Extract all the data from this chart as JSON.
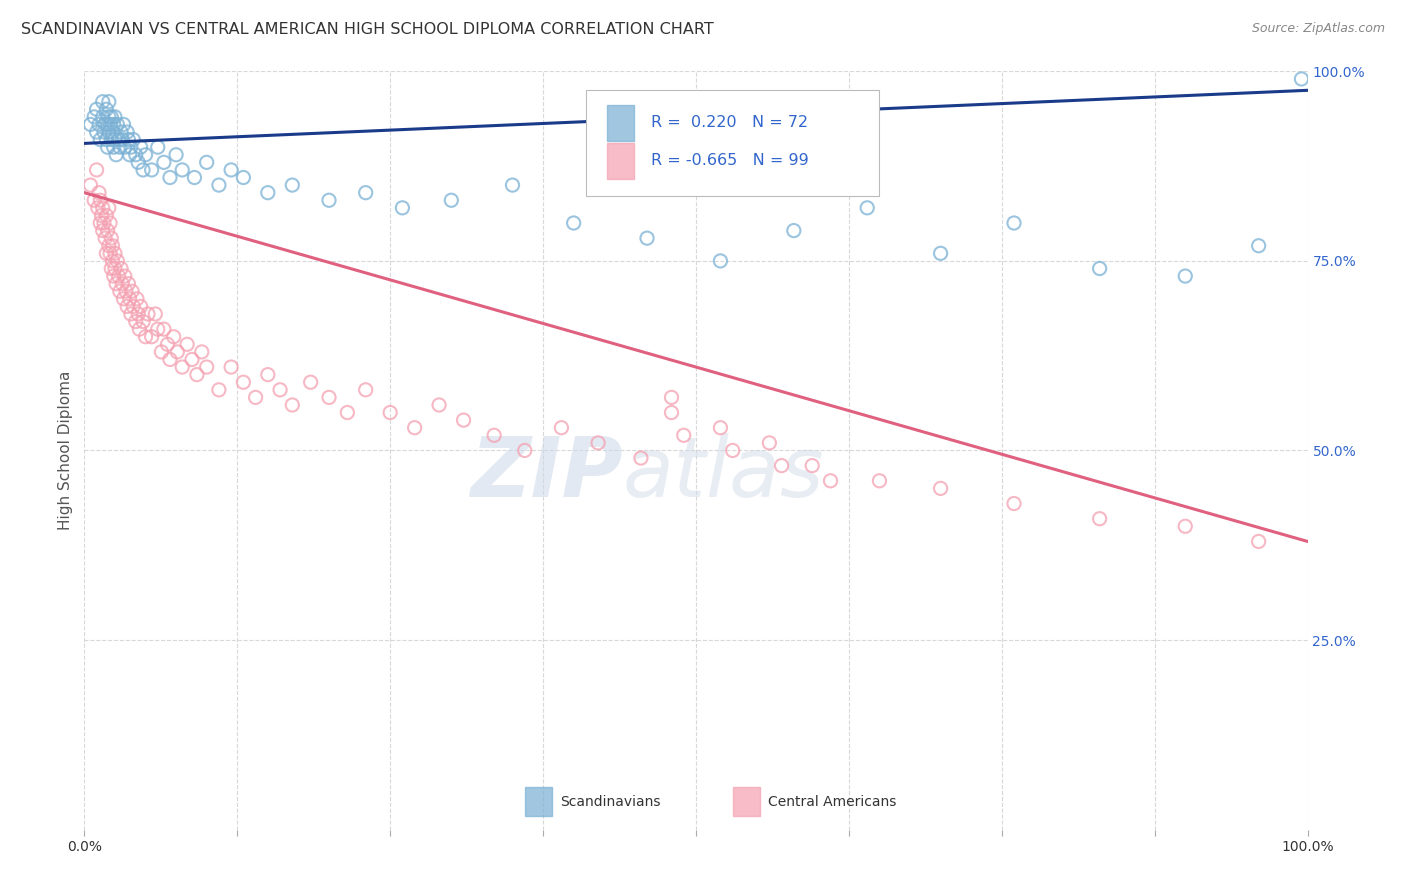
{
  "title": "SCANDINAVIAN VS CENTRAL AMERICAN HIGH SCHOOL DIPLOMA CORRELATION CHART",
  "source": "Source: ZipAtlas.com",
  "ylabel": "High School Diploma",
  "xlim": [
    0,
    1
  ],
  "ylim": [
    0,
    1
  ],
  "ytick_positions_right": [
    1.0,
    0.75,
    0.5,
    0.25
  ],
  "ytick_labels_right": [
    "100.0%",
    "75.0%",
    "50.0%",
    "25.0%"
  ],
  "scand_color": "#7ab0d4",
  "central_color": "#f4a0b0",
  "scand_line_color": "#1a3a8a",
  "central_line_color": "#e06080",
  "background_color": "#ffffff",
  "grid_color": "#d8d8d8",
  "label_color": "#3366cc",
  "title_color": "#333333",
  "scand_trend_x0": 0.0,
  "scand_trend_x1": 1.0,
  "scand_trend_y0": 0.905,
  "scand_trend_y1": 0.975,
  "central_trend_x0": 0.0,
  "central_trend_x1": 1.0,
  "central_trend_y0": 0.84,
  "central_trend_y1": 0.38,
  "scand_points_x": [
    0.005,
    0.008,
    0.01,
    0.01,
    0.012,
    0.013,
    0.015,
    0.015,
    0.016,
    0.017,
    0.018,
    0.018,
    0.019,
    0.019,
    0.02,
    0.02,
    0.02,
    0.021,
    0.022,
    0.022,
    0.023,
    0.024,
    0.024,
    0.025,
    0.025,
    0.026,
    0.027,
    0.028,
    0.029,
    0.03,
    0.031,
    0.032,
    0.033,
    0.035,
    0.036,
    0.037,
    0.038,
    0.04,
    0.042,
    0.044,
    0.046,
    0.048,
    0.05,
    0.055,
    0.06,
    0.065,
    0.07,
    0.075,
    0.08,
    0.09,
    0.1,
    0.11,
    0.12,
    0.13,
    0.15,
    0.17,
    0.2,
    0.23,
    0.26,
    0.3,
    0.35,
    0.4,
    0.46,
    0.52,
    0.58,
    0.64,
    0.7,
    0.76,
    0.83,
    0.9,
    0.96,
    0.995
  ],
  "scand_points_y": [
    0.93,
    0.94,
    0.92,
    0.95,
    0.93,
    0.91,
    0.96,
    0.94,
    0.92,
    0.93,
    0.91,
    0.95,
    0.9,
    0.93,
    0.94,
    0.92,
    0.96,
    0.93,
    0.91,
    0.94,
    0.92,
    0.9,
    0.93,
    0.94,
    0.91,
    0.89,
    0.93,
    0.91,
    0.9,
    0.92,
    0.91,
    0.93,
    0.9,
    0.92,
    0.91,
    0.89,
    0.9,
    0.91,
    0.89,
    0.88,
    0.9,
    0.87,
    0.89,
    0.87,
    0.9,
    0.88,
    0.86,
    0.89,
    0.87,
    0.86,
    0.88,
    0.85,
    0.87,
    0.86,
    0.84,
    0.85,
    0.83,
    0.84,
    0.82,
    0.83,
    0.85,
    0.8,
    0.78,
    0.75,
    0.79,
    0.82,
    0.76,
    0.8,
    0.74,
    0.73,
    0.77,
    0.99
  ],
  "central_points_x": [
    0.005,
    0.008,
    0.01,
    0.011,
    0.012,
    0.013,
    0.013,
    0.014,
    0.015,
    0.015,
    0.016,
    0.017,
    0.018,
    0.018,
    0.019,
    0.02,
    0.02,
    0.021,
    0.021,
    0.022,
    0.022,
    0.023,
    0.023,
    0.024,
    0.025,
    0.025,
    0.026,
    0.027,
    0.028,
    0.029,
    0.03,
    0.031,
    0.032,
    0.033,
    0.034,
    0.035,
    0.036,
    0.037,
    0.038,
    0.039,
    0.04,
    0.042,
    0.043,
    0.044,
    0.045,
    0.046,
    0.048,
    0.05,
    0.052,
    0.055,
    0.058,
    0.06,
    0.063,
    0.065,
    0.068,
    0.07,
    0.073,
    0.076,
    0.08,
    0.084,
    0.088,
    0.092,
    0.096,
    0.1,
    0.11,
    0.12,
    0.13,
    0.14,
    0.15,
    0.16,
    0.17,
    0.185,
    0.2,
    0.215,
    0.23,
    0.25,
    0.27,
    0.29,
    0.31,
    0.335,
    0.36,
    0.39,
    0.42,
    0.455,
    0.49,
    0.53,
    0.57,
    0.61,
    0.48,
    0.52,
    0.56,
    0.48,
    0.595,
    0.65,
    0.7,
    0.76,
    0.83,
    0.9,
    0.96
  ],
  "central_points_y": [
    0.85,
    0.83,
    0.87,
    0.82,
    0.84,
    0.8,
    0.83,
    0.81,
    0.79,
    0.82,
    0.8,
    0.78,
    0.81,
    0.76,
    0.79,
    0.77,
    0.82,
    0.76,
    0.8,
    0.78,
    0.74,
    0.77,
    0.75,
    0.73,
    0.76,
    0.74,
    0.72,
    0.75,
    0.73,
    0.71,
    0.74,
    0.72,
    0.7,
    0.73,
    0.71,
    0.69,
    0.72,
    0.7,
    0.68,
    0.71,
    0.69,
    0.67,
    0.7,
    0.68,
    0.66,
    0.69,
    0.67,
    0.65,
    0.68,
    0.65,
    0.68,
    0.66,
    0.63,
    0.66,
    0.64,
    0.62,
    0.65,
    0.63,
    0.61,
    0.64,
    0.62,
    0.6,
    0.63,
    0.61,
    0.58,
    0.61,
    0.59,
    0.57,
    0.6,
    0.58,
    0.56,
    0.59,
    0.57,
    0.55,
    0.58,
    0.55,
    0.53,
    0.56,
    0.54,
    0.52,
    0.5,
    0.53,
    0.51,
    0.49,
    0.52,
    0.5,
    0.48,
    0.46,
    0.55,
    0.53,
    0.51,
    0.57,
    0.48,
    0.46,
    0.45,
    0.43,
    0.41,
    0.4,
    0.38
  ]
}
